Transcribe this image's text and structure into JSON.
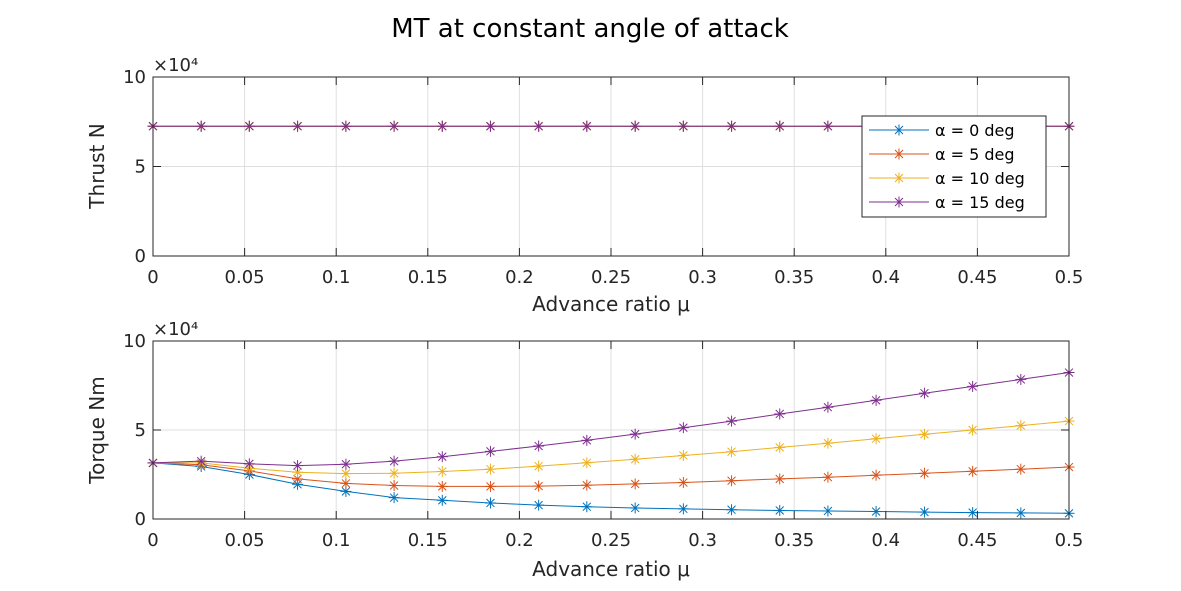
{
  "figure_title": "MT at constant angle of attack",
  "colors": {
    "alpha_0": "#0072BD",
    "alpha_5": "#D95319",
    "alpha_10": "#EDB120",
    "alpha_15": "#7E2F8E",
    "grid": "#dfdfdf",
    "axis": "#262626"
  },
  "chart_data": [
    {
      "type": "line",
      "marker": "asterisk",
      "ylabel": "Thrust N",
      "xlabel": "Advance ratio μ",
      "xlim": [
        0,
        0.5
      ],
      "ylim": [
        0,
        100000
      ],
      "exponent_label": "×10⁴",
      "xticks": [
        "0",
        "0.05",
        "0.1",
        "0.15",
        "0.2",
        "0.25",
        "0.3",
        "0.35",
        "0.4",
        "0.45",
        "0.5"
      ],
      "yticks": [
        "0",
        "5",
        "10"
      ],
      "grid": true,
      "legend_position": "top-right",
      "x": [
        0,
        0.0263,
        0.0526,
        0.0789,
        0.1053,
        0.1316,
        0.1579,
        0.1842,
        0.2105,
        0.2368,
        0.2632,
        0.2895,
        0.3158,
        0.3421,
        0.3684,
        0.3947,
        0.4211,
        0.4474,
        0.4737,
        0.5
      ],
      "series": [
        {
          "name": "α = 0 deg",
          "color_key": "alpha_0",
          "values": [
            72500,
            72500,
            72500,
            72500,
            72500,
            72500,
            72500,
            72500,
            72500,
            72500,
            72500,
            72500,
            72500,
            72500,
            72500,
            72500,
            72500,
            72500,
            72500,
            72500
          ]
        },
        {
          "name": "α = 5 deg",
          "color_key": "alpha_5",
          "values": [
            72500,
            72500,
            72500,
            72500,
            72500,
            72500,
            72500,
            72500,
            72500,
            72500,
            72500,
            72500,
            72500,
            72500,
            72500,
            72500,
            72500,
            72500,
            72500,
            72500
          ]
        },
        {
          "name": "α = 10 deg",
          "color_key": "alpha_10",
          "values": [
            72500,
            72500,
            72500,
            72500,
            72500,
            72500,
            72500,
            72500,
            72500,
            72500,
            72500,
            72500,
            72500,
            72500,
            72500,
            72500,
            72500,
            72500,
            72500,
            72500
          ]
        },
        {
          "name": "α = 15 deg",
          "color_key": "alpha_15",
          "values": [
            72500,
            72500,
            72500,
            72500,
            72500,
            72500,
            72500,
            72500,
            72500,
            72500,
            72500,
            72500,
            72500,
            72500,
            72500,
            72500,
            72500,
            72500,
            72500,
            72500
          ]
        }
      ]
    },
    {
      "type": "line",
      "marker": "asterisk",
      "ylabel": "Torque Nm",
      "xlabel": "Advance ratio μ",
      "xlim": [
        0,
        0.5
      ],
      "ylim": [
        0,
        100000
      ],
      "exponent_label": "×10⁴",
      "xticks": [
        "0",
        "0.05",
        "0.1",
        "0.15",
        "0.2",
        "0.25",
        "0.3",
        "0.35",
        "0.4",
        "0.45",
        "0.5"
      ],
      "yticks": [
        "0",
        "5",
        "10"
      ],
      "grid": true,
      "x": [
        0,
        0.0263,
        0.0526,
        0.0789,
        0.1053,
        0.1316,
        0.1579,
        0.1842,
        0.2105,
        0.2368,
        0.2632,
        0.2895,
        0.3158,
        0.3421,
        0.3684,
        0.3947,
        0.4211,
        0.4474,
        0.4737,
        0.5
      ],
      "series": [
        {
          "name": "α = 0 deg",
          "color_key": "alpha_0",
          "values": [
            31500,
            29500,
            25000,
            19500,
            15500,
            12000,
            10500,
            9000,
            7800,
            6900,
            6200,
            5700,
            5200,
            4800,
            4500,
            4200,
            3900,
            3600,
            3400,
            3200
          ]
        },
        {
          "name": "α = 5 deg",
          "color_key": "alpha_5",
          "values": [
            31500,
            30500,
            27000,
            22500,
            20000,
            18800,
            18300,
            18300,
            18500,
            19000,
            19700,
            20500,
            21500,
            22500,
            23500,
            24600,
            25700,
            26800,
            28000,
            29200
          ]
        },
        {
          "name": "α = 10 deg",
          "color_key": "alpha_10",
          "values": [
            31500,
            31500,
            28500,
            26300,
            25500,
            25700,
            26700,
            28000,
            29700,
            31600,
            33600,
            35700,
            37800,
            40200,
            42600,
            45100,
            47600,
            50000,
            52500,
            55000
          ]
        },
        {
          "name": "α = 15 deg",
          "color_key": "alpha_15",
          "values": [
            31500,
            32500,
            31000,
            30000,
            30800,
            32500,
            35000,
            38000,
            41000,
            44200,
            47700,
            51300,
            55000,
            59000,
            62800,
            66700,
            70700,
            74500,
            78400,
            82300
          ]
        }
      ]
    }
  ]
}
